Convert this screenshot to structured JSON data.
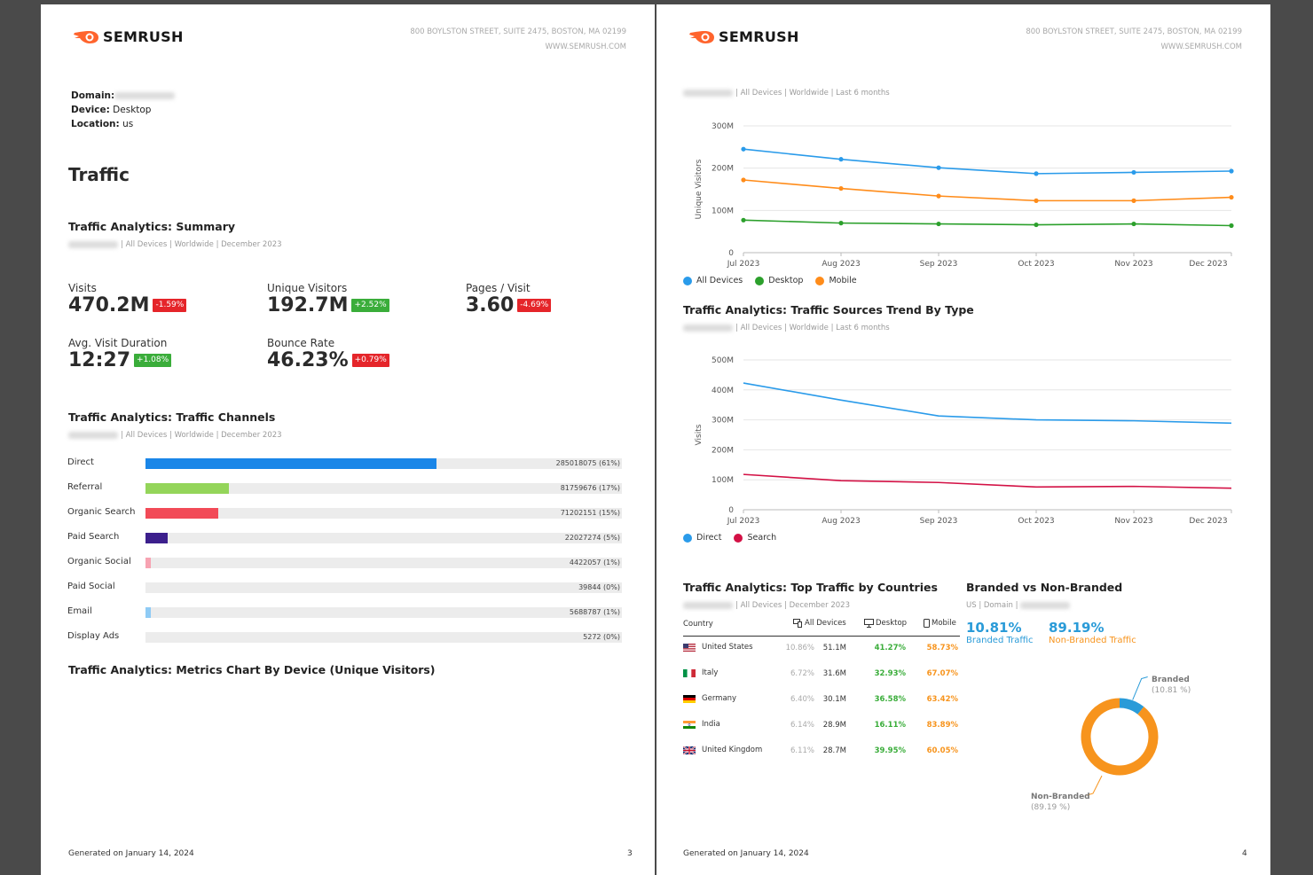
{
  "brand": {
    "name": "SEMRUSH",
    "address_line1": "800 BOYLSTON STREET, SUITE 2475, BOSTON, MA 02199",
    "address_line2": "WWW.SEMRUSH.COM"
  },
  "colors": {
    "accent_orange": "#ff642d",
    "blue": "#2a9bd8",
    "green": "#3aad3a",
    "red": "#e5252a"
  },
  "page3": {
    "meta": {
      "domain_label": "Domain:",
      "device_label": "Device:",
      "device_value": "Desktop",
      "location_label": "Location:",
      "location_value": "us"
    },
    "heading": "Traffic",
    "summary": {
      "title": "Traffic Analytics: Summary",
      "subtitle": "| All Devices | Worldwide | December 2023",
      "metrics": [
        {
          "label": "Visits",
          "value": "470.2M",
          "change": "-1.59%",
          "trend": "down"
        },
        {
          "label": "Unique Visitors",
          "value": "192.7M",
          "change": "+2.52%",
          "trend": "up"
        },
        {
          "label": "Pages / Visit",
          "value": "3.60",
          "change": "-4.69%",
          "trend": "down"
        },
        {
          "label": "Avg. Visit Duration",
          "value": "12:27",
          "change": "+1.08%",
          "trend": "up"
        },
        {
          "label": "Bounce Rate",
          "value": "46.23%",
          "change": "+0.79%",
          "trend": "down"
        }
      ]
    },
    "channels": {
      "title": "Traffic Analytics: Traffic Channels",
      "subtitle": "| All Devices | Worldwide | December 2023",
      "rows": [
        {
          "label": "Direct",
          "value": "285018075 (61%)",
          "share": 0.61,
          "color": "#1a86e8"
        },
        {
          "label": "Referral",
          "value": "81759676 (17%)",
          "share": 0.175,
          "color": "#94d55a"
        },
        {
          "label": "Organic Search",
          "value": "71202151 (15%)",
          "share": 0.152,
          "color": "#f24a57"
        },
        {
          "label": "Paid Search",
          "value": "22027274 (5%)",
          "share": 0.047,
          "color": "#3c1f8c"
        },
        {
          "label": "Organic Social",
          "value": "4422057 (1%)",
          "share": 0.009,
          "color": "#f7a3b2"
        },
        {
          "label": "Paid Social",
          "value": "39844 (0%)",
          "share": 0,
          "color": "#cccccc"
        },
        {
          "label": "Email",
          "value": "5688787 (1%)",
          "share": 0.012,
          "color": "#8fcbf5"
        },
        {
          "label": "Display Ads",
          "value": "5272 (0%)",
          "share": 0,
          "color": "#cccccc"
        }
      ]
    },
    "device_chart_title": "Traffic Analytics: Metrics Chart By Device (Unique Visitors)",
    "footer": {
      "generated": "Generated on January 14, 2024",
      "page_number": "3"
    }
  },
  "page4": {
    "chart1_subtitle": "| All Devices | Worldwide | Last 6 months",
    "chart2_title": "Traffic Analytics: Traffic Sources Trend By Type",
    "chart2_subtitle": "| All Devices | Worldwide | Last 6 months",
    "countries": {
      "title": "Traffic Analytics: Top Traffic by Countries",
      "subtitle": "| All Devices | December 2023",
      "headers": {
        "country": "Country",
        "all": "All Devices",
        "desktop": "Desktop",
        "mobile": "Mobile"
      },
      "rows": [
        {
          "name": "United States",
          "pct": "10.86%",
          "all": "51.1M",
          "desktop": "41.27%",
          "mobile": "58.73%"
        },
        {
          "name": "Italy",
          "pct": "6.72%",
          "all": "31.6M",
          "desktop": "32.93%",
          "mobile": "67.07%"
        },
        {
          "name": "Germany",
          "pct": "6.40%",
          "all": "30.1M",
          "desktop": "36.58%",
          "mobile": "63.42%"
        },
        {
          "name": "India",
          "pct": "6.14%",
          "all": "28.9M",
          "desktop": "16.11%",
          "mobile": "83.89%"
        },
        {
          "name": "United Kingdom",
          "pct": "6.11%",
          "all": "28.7M",
          "desktop": "39.95%",
          "mobile": "60.05%"
        }
      ]
    },
    "branded": {
      "title": "Branded vs Non-Branded",
      "subtitle": "US | Domain |",
      "branded_value": "10.81%",
      "branded_label": "Branded Traffic",
      "nonbranded_value": "89.19%",
      "nonbranded_label": "Non-Branded Traffic",
      "donut_branded_label": "Branded",
      "donut_branded_pct": "(10.81 %)",
      "donut_nonbranded_label": "Non-Branded",
      "donut_nonbranded_pct": "(89.19 %)"
    },
    "footer": {
      "generated": "Generated on January 14, 2024",
      "page_number": "4"
    }
  },
  "chart_data": [
    {
      "type": "line",
      "title": "",
      "ylabel": "Unique Visitors",
      "ylim": [
        0,
        300000000
      ],
      "yticks": [
        "0",
        "100M",
        "200M",
        "300M"
      ],
      "x": [
        "Jul 2023",
        "Aug 2023",
        "Sep 2023",
        "Oct 2023",
        "Nov 2023",
        "Dec 2023"
      ],
      "series": [
        {
          "name": "All Devices",
          "color": "#2a9bea",
          "values": [
            245000000,
            221000000,
            201000000,
            187000000,
            190000000,
            193000000
          ]
        },
        {
          "name": "Desktop",
          "color": "#2ca02c",
          "values": [
            77000000,
            70000000,
            68000000,
            66000000,
            68000000,
            64000000
          ]
        },
        {
          "name": "Mobile",
          "color": "#ff8c1a",
          "values": [
            172000000,
            152000000,
            134000000,
            123000000,
            123000000,
            131000000
          ]
        }
      ],
      "legend": "bottom-left",
      "grid": true
    },
    {
      "type": "line",
      "title": "Traffic Analytics: Traffic Sources Trend By Type",
      "ylabel": "Visits",
      "ylim": [
        0,
        500000000
      ],
      "yticks": [
        "0",
        "100M",
        "200M",
        "300M",
        "400M",
        "500M"
      ],
      "x": [
        "Jul 2023",
        "Aug 2023",
        "Sep 2023",
        "Oct 2023",
        "Nov 2023",
        "Dec 2023"
      ],
      "series": [
        {
          "name": "Direct",
          "color": "#2a9bea",
          "values": [
            423000000,
            366000000,
            313000000,
            300000000,
            297000000,
            289000000
          ]
        },
        {
          "name": "Search",
          "color": "#d31145",
          "values": [
            118000000,
            97000000,
            91000000,
            76000000,
            78000000,
            72000000
          ]
        }
      ],
      "legend": "bottom-left",
      "grid": true
    },
    {
      "type": "pie",
      "title": "Branded vs Non-Branded",
      "labels": [
        "Branded",
        "Non-Branded"
      ],
      "values": [
        10.81,
        89.19
      ],
      "colors": [
        "#2a9bd8",
        "#f7941d"
      ]
    }
  ]
}
